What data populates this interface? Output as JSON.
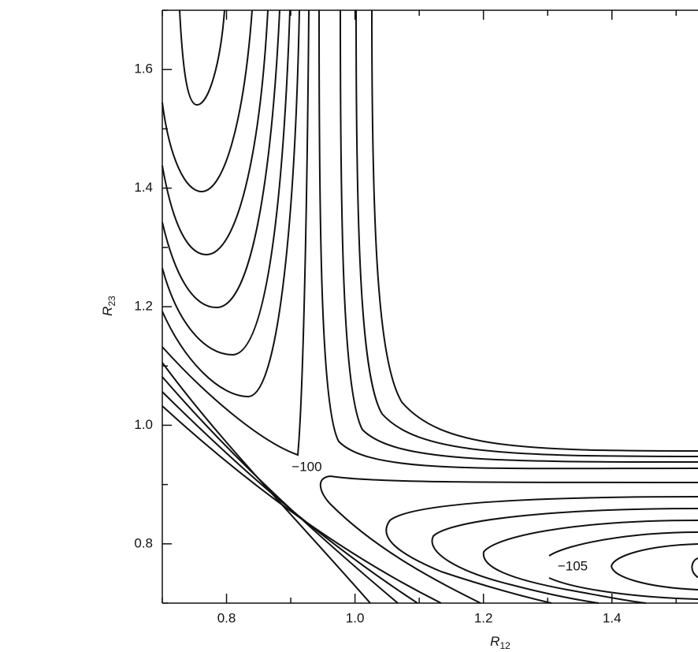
{
  "chart_data": {
    "type": "contour",
    "xlabel": "R",
    "xlabel_sub": "12",
    "ylabel": "R",
    "ylabel_sub": "23",
    "xlim": [
      0.7,
      1.534
    ],
    "ylim": [
      0.7,
      1.7
    ],
    "xticks": [
      0.8,
      {
        "value": 1,
        "label": "1.0"
      },
      1.2,
      1.4
    ],
    "yticks": [
      0.8,
      {
        "value": 1,
        "label": "1.0"
      },
      1.2,
      1.4,
      1.6
    ],
    "xminorticks": [
      0.7,
      0.9,
      1.1,
      1.3,
      1.5
    ],
    "yminorticks": [
      0.7,
      0.9,
      1.1,
      1.3,
      1.5,
      1.7
    ],
    "contour_labels": [
      {
        "value": -100,
        "label": "−100",
        "x": 0.925,
        "y": 0.929
      },
      {
        "value": -105,
        "label": "−105",
        "x": 1.339,
        "y": 0.761
      }
    ]
  }
}
